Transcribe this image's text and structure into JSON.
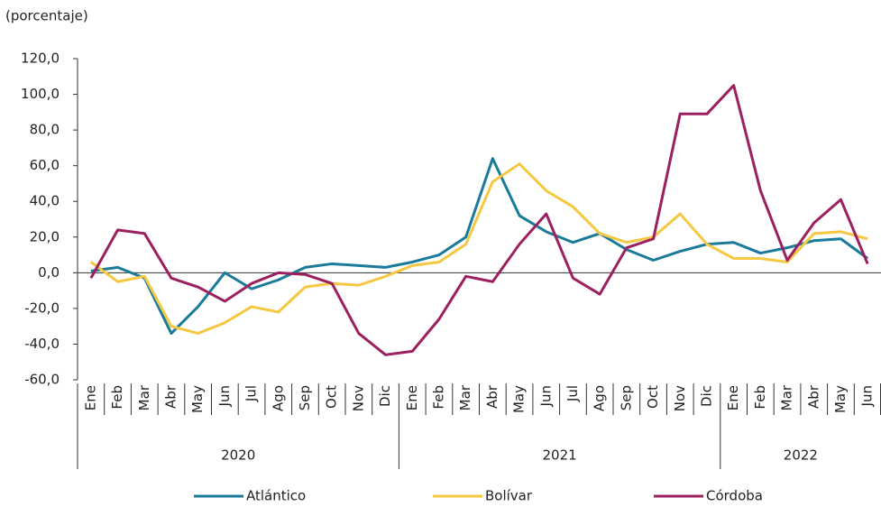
{
  "chart_data": {
    "type": "line",
    "y_axis_label": "(porcentaje)",
    "categories": [
      "Ene",
      "Feb",
      "Mar",
      "Abr",
      "May",
      "Jun",
      "Jul",
      "Ago",
      "Sep",
      "Oct",
      "Nov",
      "Dic",
      "Ene",
      "Feb",
      "Mar",
      "Abr",
      "May",
      "Jun",
      "Jul",
      "Ago",
      "Sep",
      "Oct",
      "Nov",
      "Dic",
      "Ene",
      "Feb",
      "Mar",
      "Abr",
      "May",
      "Jun"
    ],
    "year_labels": [
      "2020",
      "2021",
      "2022"
    ],
    "series": [
      {
        "name": "Atlántico",
        "color": "#1a7a9a",
        "values": [
          1,
          3,
          -3,
          -34,
          -19,
          0,
          -9,
          -4,
          3,
          5,
          4,
          3,
          6,
          10,
          20,
          64,
          32,
          23,
          17,
          22,
          13,
          7,
          12,
          16,
          17,
          11,
          14,
          18,
          19,
          8
        ]
      },
      {
        "name": "Bolívar",
        "color": "#f5c842",
        "values": [
          6,
          -5,
          -2,
          -30,
          -34,
          -28,
          -19,
          -22,
          -8,
          -6,
          -7,
          -2,
          4,
          6,
          16,
          51,
          61,
          46,
          37,
          22,
          17,
          20,
          33,
          16,
          8,
          8,
          6,
          22,
          23,
          19
        ]
      },
      {
        "name": "Córdoba",
        "color": "#9c1f5e",
        "values": [
          -3,
          24,
          22,
          -3,
          -8,
          -16,
          -6,
          0,
          -1,
          -6,
          -34,
          -46,
          -44,
          -26,
          -2,
          -5,
          16,
          33,
          -3,
          -12,
          14,
          19,
          89,
          89,
          105,
          46,
          7,
          28,
          41,
          5
        ]
      }
    ],
    "ylim": [
      -60,
      120
    ],
    "yticks": [
      {
        "value": -60,
        "label": "-60,0"
      },
      {
        "value": -40,
        "label": "-40,0"
      },
      {
        "value": -20,
        "label": "-20,0"
      },
      {
        "value": 0,
        "label": "0,0"
      },
      {
        "value": 20,
        "label": "20,0"
      },
      {
        "value": 40,
        "label": "40,0"
      },
      {
        "value": 60,
        "label": "60,0"
      },
      {
        "value": 80,
        "label": "80,0"
      },
      {
        "value": 100,
        "label": "100,0"
      },
      {
        "value": 120,
        "label": "120,0"
      }
    ],
    "grid": false
  }
}
